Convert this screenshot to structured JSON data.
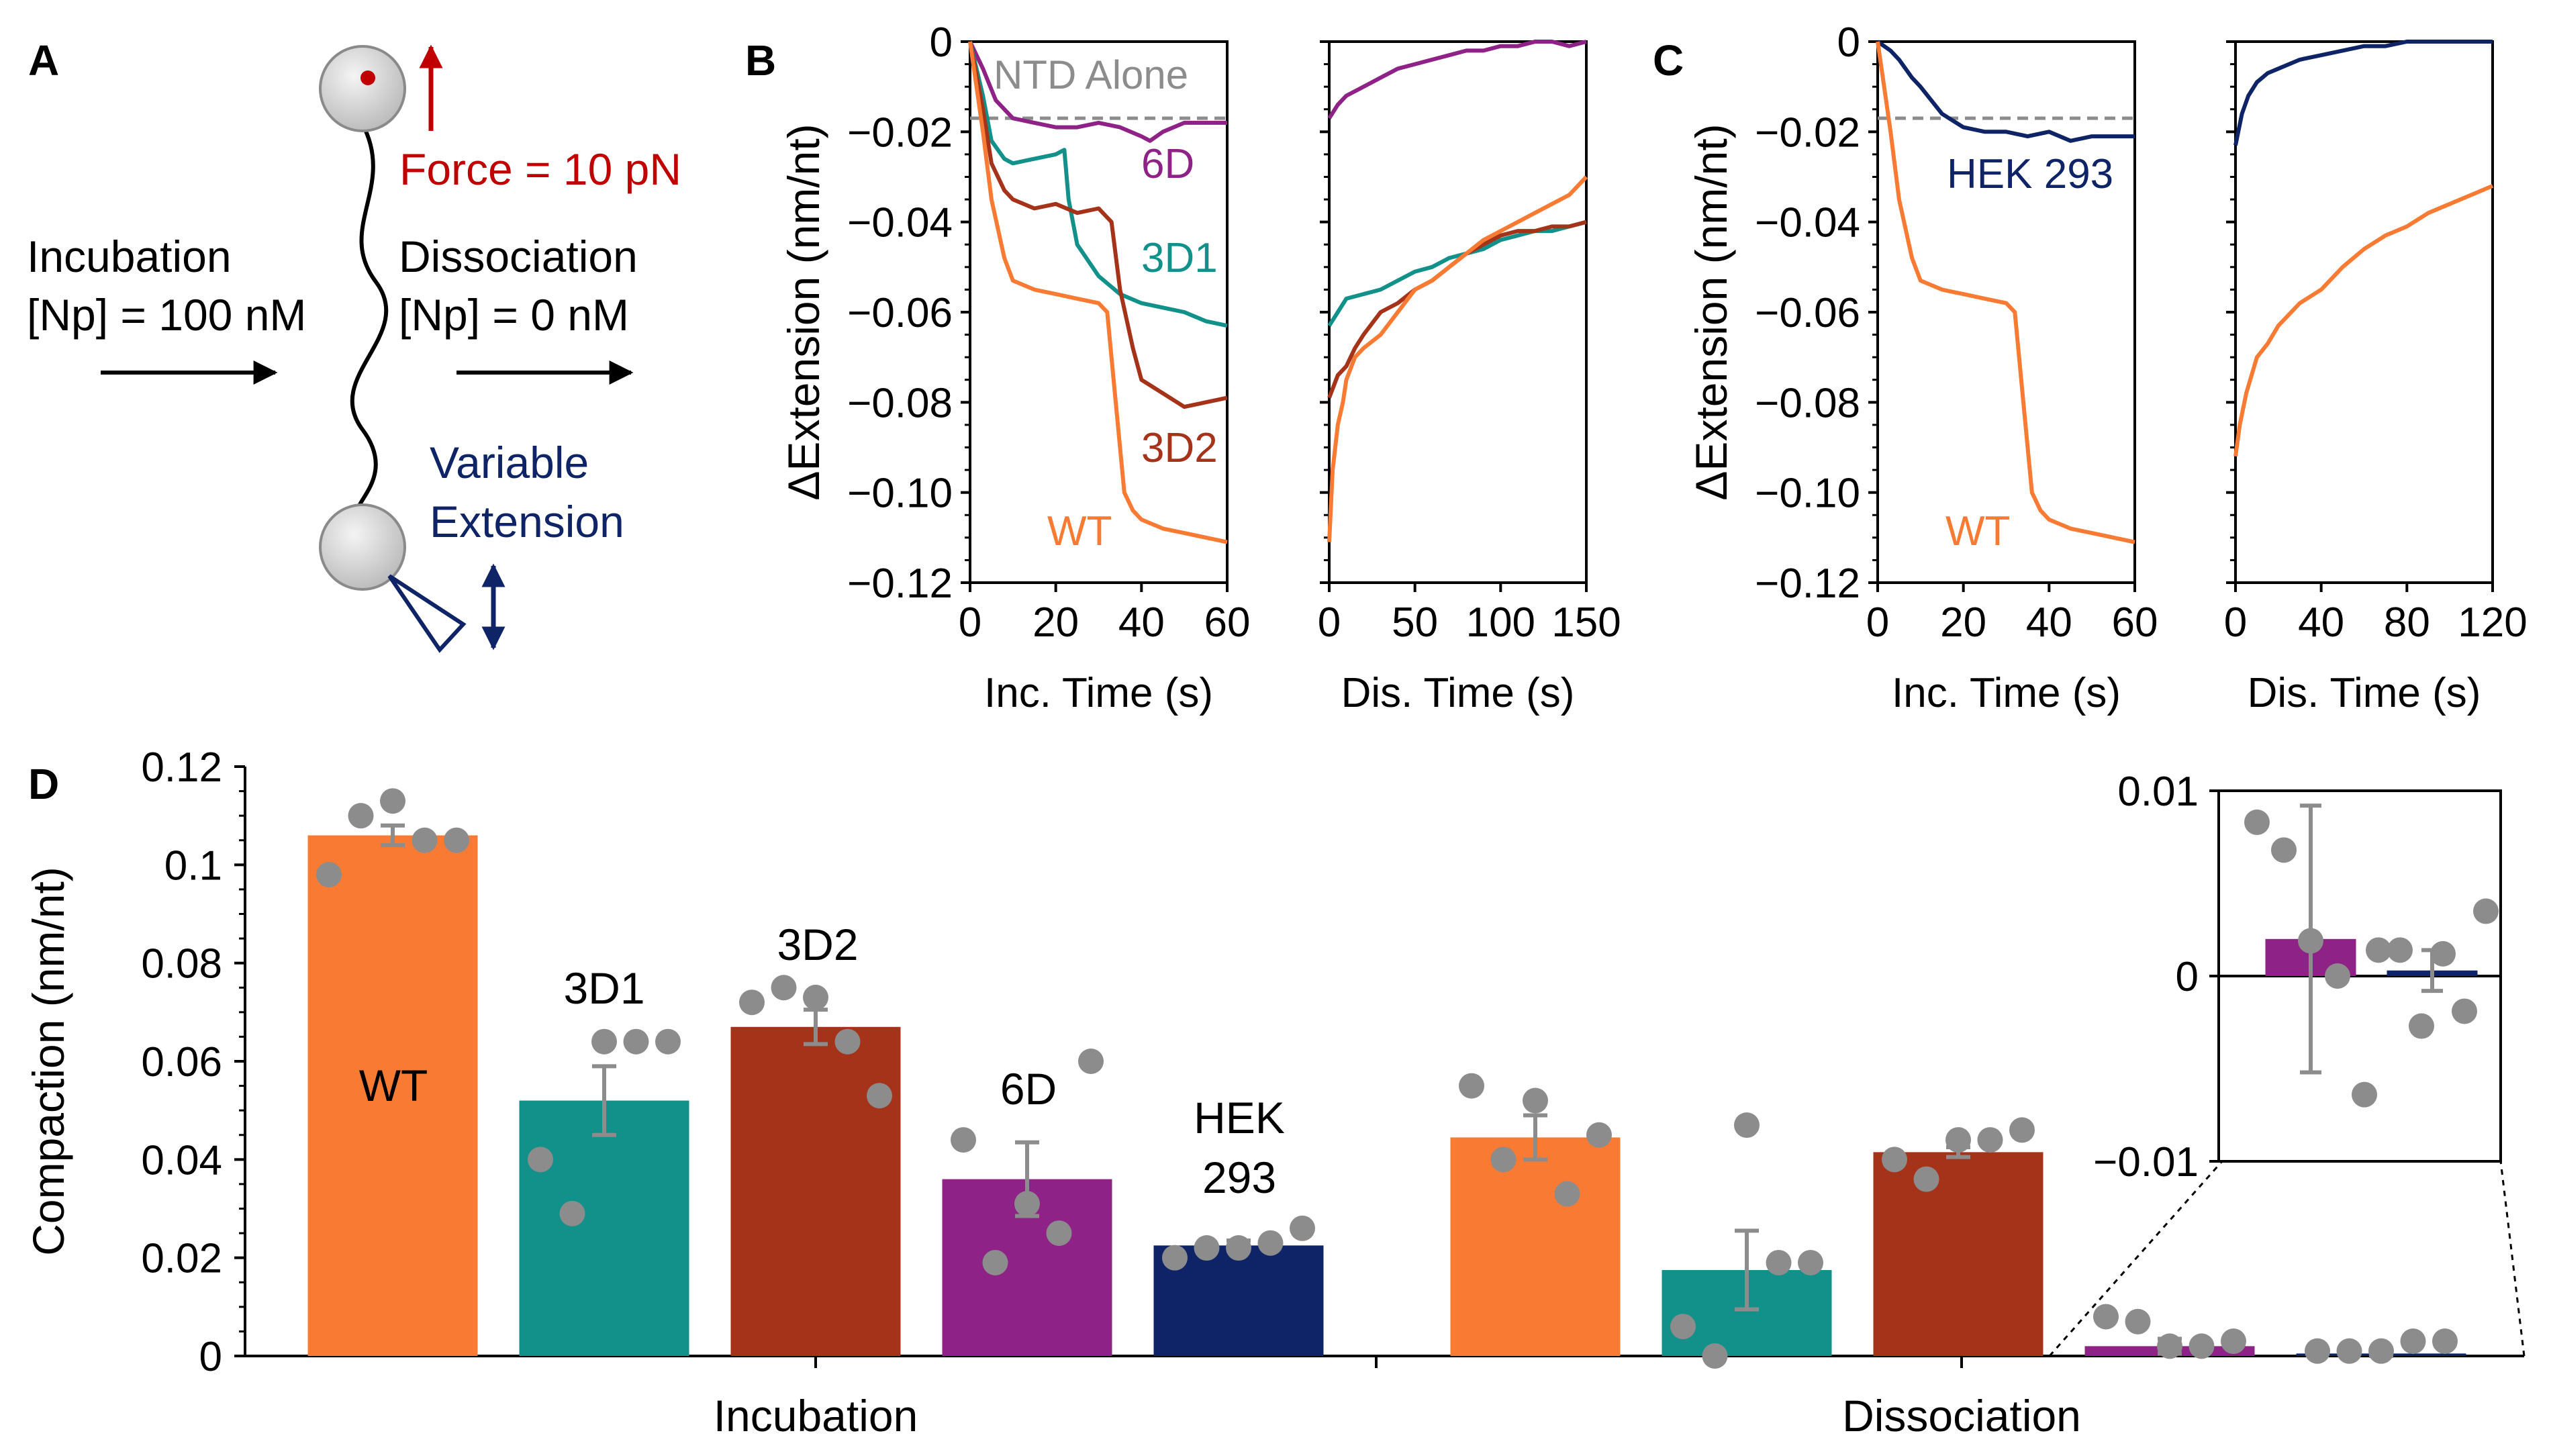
{
  "figure": {
    "panel_labels": {
      "A": "A",
      "B": "B",
      "C": "C",
      "D": "D"
    },
    "schematic": {
      "force_label": "Force = 10 pN",
      "incubation_title": "Incubation",
      "incubation_conc": "[Np] = 100 nM",
      "dissociation_title": "Dissociation",
      "dissociation_conc": "[Np] = 0 nM",
      "extension_line1": "Variable",
      "extension_line2": "Extension"
    }
  },
  "colors": {
    "WT": "#F97B33",
    "3D1": "#12908A",
    "3D2": "#A5331A",
    "6D": "#8E2286",
    "HEK293": "#0E2467",
    "NTD": "#8C8C8C",
    "force": "#C00000",
    "extension": "#0E2467",
    "dots": "#8C8C8C"
  },
  "chart_data": [
    {
      "id": "B-incubation",
      "type": "line",
      "xlabel": "Inc. Time (s)",
      "ylabel": "ΔExtension (nm/nt)",
      "xlim": [
        0,
        60
      ],
      "ylim": [
        -0.12,
        0
      ],
      "xticks": [
        0,
        20,
        40,
        60
      ],
      "yticks": [
        0,
        -0.02,
        -0.04,
        -0.06,
        -0.08,
        -0.1,
        -0.12
      ],
      "ytick_labels": [
        "0",
        "−0.02",
        "−0.04",
        "−0.06",
        "−0.08",
        "−0.10",
        "−0.12"
      ],
      "reference_line": {
        "y": -0.017,
        "label": "NTD Alone"
      },
      "series": [
        {
          "name": "6D",
          "label": "6D",
          "key": "6D",
          "x": [
            0,
            3,
            6,
            10,
            15,
            20,
            25,
            30,
            35,
            40,
            42,
            45,
            50,
            55,
            60
          ],
          "y": [
            0,
            -0.006,
            -0.013,
            -0.017,
            -0.018,
            -0.019,
            -0.019,
            -0.018,
            -0.019,
            -0.021,
            -0.022,
            -0.02,
            -0.018,
            -0.018,
            -0.018
          ]
        },
        {
          "name": "3D1",
          "label": "3D1",
          "key": "3D1",
          "x": [
            0,
            3,
            5,
            8,
            10,
            15,
            20,
            22,
            23,
            25,
            30,
            35,
            40,
            45,
            50,
            55,
            60
          ],
          "y": [
            0,
            -0.012,
            -0.022,
            -0.026,
            -0.027,
            -0.026,
            -0.025,
            -0.024,
            -0.035,
            -0.045,
            -0.052,
            -0.056,
            -0.058,
            -0.059,
            -0.06,
            -0.062,
            -0.063
          ]
        },
        {
          "name": "3D2",
          "label": "3D2",
          "key": "3D2",
          "x": [
            0,
            3,
            5,
            8,
            10,
            15,
            20,
            25,
            30,
            33,
            35,
            38,
            40,
            45,
            50,
            55,
            60
          ],
          "y": [
            0,
            -0.015,
            -0.027,
            -0.033,
            -0.035,
            -0.037,
            -0.036,
            -0.038,
            -0.037,
            -0.04,
            -0.055,
            -0.068,
            -0.075,
            -0.078,
            -0.081,
            -0.08,
            -0.079
          ]
        },
        {
          "name": "WT",
          "label": "WT",
          "key": "WT",
          "x": [
            0,
            3,
            5,
            8,
            10,
            15,
            20,
            25,
            30,
            32,
            34,
            36,
            38,
            40,
            45,
            50,
            55,
            60
          ],
          "y": [
            0,
            -0.02,
            -0.035,
            -0.048,
            -0.053,
            -0.055,
            -0.056,
            -0.057,
            -0.058,
            -0.06,
            -0.08,
            -0.1,
            -0.104,
            -0.106,
            -0.108,
            -0.109,
            -0.11,
            -0.111
          ]
        }
      ]
    },
    {
      "id": "B-dissociation",
      "type": "line",
      "xlabel": "Dis. Time (s)",
      "ylabel": "",
      "xlim": [
        0,
        150
      ],
      "ylim": [
        -0.12,
        0
      ],
      "xticks": [
        0,
        50,
        100,
        150
      ],
      "series": [
        {
          "name": "6D",
          "key": "6D",
          "x": [
            0,
            5,
            10,
            20,
            30,
            40,
            50,
            60,
            70,
            80,
            90,
            100,
            110,
            120,
            130,
            140,
            150
          ],
          "y": [
            -0.017,
            -0.014,
            -0.012,
            -0.01,
            -0.008,
            -0.006,
            -0.005,
            -0.004,
            -0.003,
            -0.002,
            -0.002,
            -0.001,
            -0.001,
            0,
            0,
            -0.001,
            0
          ]
        },
        {
          "name": "3D1",
          "key": "3D1",
          "x": [
            0,
            5,
            10,
            20,
            30,
            40,
            50,
            60,
            70,
            80,
            90,
            100,
            110,
            120,
            130,
            140,
            150
          ],
          "y": [
            -0.063,
            -0.06,
            -0.057,
            -0.056,
            -0.055,
            -0.053,
            -0.051,
            -0.05,
            -0.048,
            -0.047,
            -0.046,
            -0.044,
            -0.043,
            -0.042,
            -0.042,
            -0.041,
            -0.04
          ]
        },
        {
          "name": "3D2",
          "key": "3D2",
          "x": [
            0,
            5,
            10,
            15,
            20,
            30,
            40,
            50,
            60,
            70,
            80,
            90,
            100,
            110,
            120,
            130,
            140,
            150
          ],
          "y": [
            -0.079,
            -0.074,
            -0.072,
            -0.068,
            -0.065,
            -0.06,
            -0.058,
            -0.055,
            -0.053,
            -0.05,
            -0.047,
            -0.045,
            -0.043,
            -0.042,
            -0.042,
            -0.041,
            -0.041,
            -0.04
          ]
        },
        {
          "name": "WT",
          "key": "WT",
          "x": [
            0,
            2,
            5,
            8,
            10,
            15,
            20,
            30,
            40,
            50,
            60,
            70,
            80,
            90,
            100,
            110,
            120,
            130,
            140,
            150
          ],
          "y": [
            -0.111,
            -0.095,
            -0.085,
            -0.08,
            -0.075,
            -0.07,
            -0.068,
            -0.065,
            -0.06,
            -0.055,
            -0.053,
            -0.05,
            -0.047,
            -0.044,
            -0.042,
            -0.04,
            -0.038,
            -0.036,
            -0.034,
            -0.03
          ]
        }
      ]
    },
    {
      "id": "C-incubation",
      "type": "line",
      "xlabel": "Inc. Time (s)",
      "ylabel": "ΔExtension (nm/nt)",
      "xlim": [
        0,
        60
      ],
      "ylim": [
        -0.12,
        0
      ],
      "xticks": [
        0,
        20,
        40,
        60
      ],
      "yticks": [
        0,
        -0.02,
        -0.04,
        -0.06,
        -0.08,
        -0.1,
        -0.12
      ],
      "ytick_labels": [
        "0",
        "−0.02",
        "−0.04",
        "−0.06",
        "−0.08",
        "−0.10",
        "−0.12"
      ],
      "reference_line": {
        "y": -0.017,
        "label": ""
      },
      "series": [
        {
          "name": "HEK 293",
          "label": "HEK 293",
          "key": "HEK293",
          "x": [
            0,
            3,
            5,
            8,
            10,
            15,
            20,
            25,
            30,
            35,
            40,
            45,
            50,
            55,
            60
          ],
          "y": [
            0,
            -0.002,
            -0.004,
            -0.008,
            -0.01,
            -0.016,
            -0.019,
            -0.02,
            -0.02,
            -0.021,
            -0.02,
            -0.022,
            -0.021,
            -0.021,
            -0.021
          ]
        },
        {
          "name": "WT",
          "label": "WT",
          "key": "WT",
          "x": [
            0,
            3,
            5,
            8,
            10,
            15,
            20,
            25,
            30,
            32,
            34,
            36,
            38,
            40,
            45,
            50,
            55,
            60
          ],
          "y": [
            0,
            -0.02,
            -0.035,
            -0.048,
            -0.053,
            -0.055,
            -0.056,
            -0.057,
            -0.058,
            -0.06,
            -0.08,
            -0.1,
            -0.104,
            -0.106,
            -0.108,
            -0.109,
            -0.11,
            -0.111
          ]
        }
      ]
    },
    {
      "id": "C-dissociation",
      "type": "line",
      "xlabel": "Dis. Time (s)",
      "ylabel": "",
      "xlim": [
        0,
        120
      ],
      "ylim": [
        -0.12,
        0
      ],
      "xticks": [
        0,
        40,
        80,
        120
      ],
      "series": [
        {
          "name": "HEK 293",
          "key": "HEK293",
          "x": [
            0,
            3,
            6,
            10,
            15,
            20,
            30,
            40,
            50,
            60,
            70,
            80,
            90,
            100,
            110,
            120
          ],
          "y": [
            -0.023,
            -0.016,
            -0.012,
            -0.009,
            -0.007,
            -0.006,
            -0.004,
            -0.003,
            -0.002,
            -0.001,
            -0.001,
            0,
            0,
            0,
            0,
            0
          ]
        },
        {
          "name": "WT",
          "key": "WT",
          "x": [
            0,
            2,
            5,
            10,
            15,
            20,
            30,
            40,
            50,
            60,
            70,
            80,
            90,
            100,
            110,
            120
          ],
          "y": [
            -0.092,
            -0.085,
            -0.078,
            -0.07,
            -0.067,
            -0.063,
            -0.058,
            -0.055,
            -0.05,
            -0.046,
            -0.043,
            -0.041,
            -0.038,
            -0.036,
            -0.034,
            -0.032
          ]
        }
      ]
    },
    {
      "id": "D-main",
      "type": "bar",
      "ylabel": "Compaction (nm/nt)",
      "ylim": [
        0,
        0.12
      ],
      "yticks": [
        0,
        0.02,
        0.04,
        0.06,
        0.08,
        0.1,
        0.12
      ],
      "ytick_labels": [
        "0",
        "0.02",
        "0.04",
        "0.06",
        "0.08",
        "0.1",
        "0.12"
      ],
      "groups": [
        "Incubation",
        "Dissociation"
      ],
      "bars": [
        {
          "group": "Incubation",
          "name": "WT",
          "label": "WT",
          "key": "WT",
          "value": 0.106,
          "err": 0.002,
          "points": [
            0.098,
            0.11,
            0.113,
            0.105,
            0.105
          ]
        },
        {
          "group": "Incubation",
          "name": "3D1",
          "label": "3D1",
          "key": "3D1",
          "value": 0.052,
          "err": 0.007,
          "points": [
            0.04,
            0.029,
            0.064,
            0.064,
            0.064
          ]
        },
        {
          "group": "Incubation",
          "name": "3D2",
          "label": "3D2",
          "key": "3D2",
          "value": 0.067,
          "err": 0.0035,
          "points": [
            0.072,
            0.075,
            0.073,
            0.064,
            0.053
          ]
        },
        {
          "group": "Incubation",
          "name": "6D",
          "label": "6D",
          "key": "6D",
          "value": 0.036,
          "err": 0.0075,
          "points": [
            0.044,
            0.019,
            0.031,
            0.025,
            0.06
          ]
        },
        {
          "group": "Incubation",
          "name": "HEK 293",
          "label_line1": "HEK",
          "label_line2": "293",
          "key": "HEK293",
          "value": 0.0225,
          "err": 0.001,
          "points": [
            0.02,
            0.022,
            0.022,
            0.023,
            0.026
          ]
        },
        {
          "group": "Dissociation",
          "name": "WT",
          "key": "WT",
          "value": 0.0445,
          "err": 0.0045,
          "points": [
            0.055,
            0.04,
            0.052,
            0.033,
            0.045
          ]
        },
        {
          "group": "Dissociation",
          "name": "3D1",
          "key": "3D1",
          "value": 0.0175,
          "err": 0.008,
          "points": [
            0.006,
            0.0,
            0.047,
            0.019,
            0.019
          ]
        },
        {
          "group": "Dissociation",
          "name": "3D2",
          "key": "3D2",
          "value": 0.0415,
          "err": 0.001,
          "points": [
            0.04,
            0.036,
            0.044,
            0.044,
            0.046
          ]
        },
        {
          "group": "Dissociation",
          "name": "6D",
          "key": "6D",
          "value": 0.002,
          "err": 0.0015,
          "points": [
            0.008,
            0.007,
            0.002,
            0.002,
            0.003
          ]
        },
        {
          "group": "Dissociation",
          "name": "HEK 293",
          "key": "HEK293",
          "value": 0.0005,
          "err": 0.001,
          "points": [
            0.001,
            0.001,
            0.001,
            0.003,
            0.003
          ]
        }
      ]
    },
    {
      "id": "D-inset",
      "type": "bar",
      "ylim": [
        -0.01,
        0.01
      ],
      "yticks": [
        -0.01,
        0,
        0.01
      ],
      "ytick_labels": [
        "−0.01",
        "0",
        "0.01"
      ],
      "bars": [
        {
          "name": "6D",
          "key": "6D",
          "value": 0.002,
          "err": 0.0072,
          "points": [
            0.0083,
            0.0068,
            0.0019,
            0.0,
            -0.0064
          ]
        },
        {
          "name": "HEK 293",
          "key": "HEK293",
          "value": 0.0003,
          "err": 0.0011,
          "points": [
            0.0014,
            0.0014,
            -0.0027,
            0.0012,
            -0.0019,
            0.0035
          ]
        }
      ]
    }
  ]
}
